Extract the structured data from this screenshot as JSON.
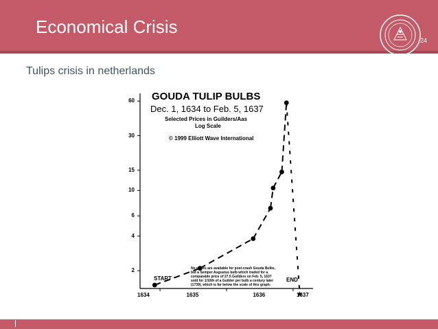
{
  "header": {
    "title": "Economical Crisis",
    "page_number": "24",
    "seal_icon": "university-seal-icon",
    "background_color": "#c45a68"
  },
  "subtitle": "Tulips crisis in netherlands",
  "chart_data": {
    "type": "line",
    "title": "GOUDA TULIP BULBS",
    "dates_line": "Dec. 1, 1634 to Feb. 5, 1637",
    "subtitle_line1": "Selected Prices in Guilders/Aas",
    "subtitle_line2": "Log Scale",
    "copyright": "© 1999 Elliott Wave International",
    "y_scale": "log",
    "y_ticks": [
      2,
      4,
      6,
      10,
      15,
      30,
      60
    ],
    "y_tick_labels": [
      "2",
      "4",
      "6",
      "10",
      "15",
      "30",
      "60"
    ],
    "x_tick_labels": [
      "1634",
      "1635",
      "1636",
      "1637"
    ],
    "ylim": [
      1.4,
      70
    ],
    "xlim": [
      1634.7,
      1637.3
    ],
    "series": [
      {
        "x": [
          1634.92,
          1635.6,
          1636.4,
          1636.66,
          1636.7,
          1636.83,
          1636.9
        ],
        "y": [
          1.5,
          2.1,
          3.8,
          7.0,
          10.5,
          14.5,
          58.0
        ]
      }
    ],
    "crash_x": [
      1636.9,
      1637.1
    ],
    "crash_y": [
      58.0,
      1.25
    ],
    "start_label": "START",
    "end_label": "END",
    "note_lines": [
      "No prices are available for post-crash Gouda Bulbs,",
      "but a Semper Augustus bulb which traded for a",
      "comparable price of 27.5 Guilders on Feb. 5, 1637",
      "sold for 1/10th of a Guilder per bulb a century later",
      "(1739), which is far below the scale of this graph."
    ],
    "grid": false
  },
  "footer": {
    "background_color": "#c45a68"
  }
}
